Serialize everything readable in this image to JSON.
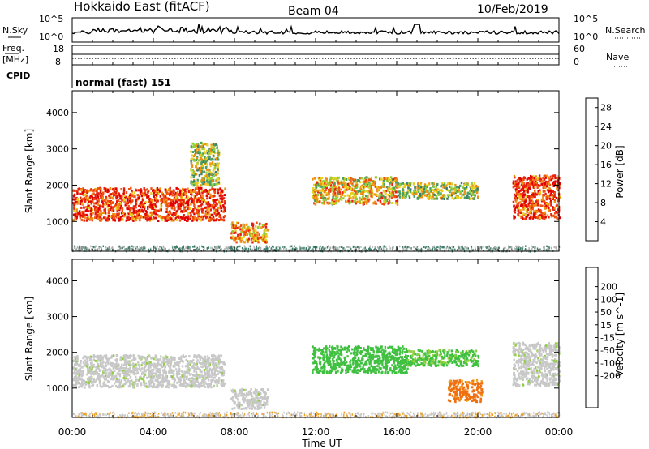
{
  "header": {
    "station": "Hokkaido East (fitACF)",
    "beam": "Beam 04",
    "date": "10/Feb/2019"
  },
  "panels": {
    "nsky": {
      "label": "N.Sky",
      "tick_top": "10^5",
      "tick_bottom": "10^0",
      "right_top": "10^5",
      "right_bottom": "10^0",
      "right_label": "N.Search"
    },
    "freq": {
      "label_line1": "Freq.",
      "label_line2": "[MHz]",
      "tick_top": "18",
      "tick_bottom": "8",
      "right_top": "60",
      "right_bottom": "0",
      "right_label": "Nave"
    },
    "cpid": {
      "label": "CPID",
      "text": "normal (fast) 151"
    }
  },
  "colors": {
    "power": [
      "#0000ff",
      "#1e4fa0",
      "#3a7d6a",
      "#4aa060",
      "#8fcf3e",
      "#e8d020",
      "#f09010",
      "#f05010",
      "#e82010",
      "#e00000"
    ],
    "velocity": [
      "#e00000",
      "#f03010",
      "#f07010",
      "#f0a020",
      "#f0d080",
      "#c8c8c8",
      "#90d040",
      "#40c040",
      "#3a7d6a",
      "#1e4fa0",
      "#0000ff"
    ],
    "ground": "#b0b0b0"
  },
  "chart_data": [
    {
      "type": "heatmap",
      "name": "power",
      "ylabel": "Slant Range [km]",
      "xlabel": "",
      "x_ticks": [
        "00:00",
        "04:00",
        "08:00",
        "12:00",
        "16:00",
        "20:00",
        "00:00"
      ],
      "y_ticks": [
        "1000",
        "2000",
        "3000",
        "4000"
      ],
      "y_tick_values": [
        1000,
        2000,
        3000,
        4000
      ],
      "ylim": [
        180,
        4600
      ],
      "xlim_hours": [
        0,
        24
      ],
      "colorbar_label": "Power [dB]",
      "colorbar_ticks": [
        "4",
        "8",
        "12",
        "16",
        "20",
        "24",
        "28"
      ],
      "colorbar_values": [
        4,
        8,
        12,
        16,
        20,
        24,
        28
      ],
      "colorbar_range": [
        0,
        30
      ],
      "regions": [
        {
          "t0": 0.0,
          "t1": 7.5,
          "r0": 1050,
          "r1": 1950,
          "level": 24
        },
        {
          "t0": 5.8,
          "t1": 7.2,
          "r0": 2000,
          "r1": 3200,
          "level": 14
        },
        {
          "t0": 7.8,
          "t1": 9.6,
          "r0": 450,
          "r1": 1000,
          "level": 20
        },
        {
          "t0": 11.8,
          "t1": 16.0,
          "r0": 1500,
          "r1": 2250,
          "level": 18
        },
        {
          "t0": 16.0,
          "t1": 20.0,
          "r0": 1650,
          "r1": 2100,
          "level": 14
        },
        {
          "t0": 21.7,
          "t1": 24.0,
          "r0": 1100,
          "r1": 2300,
          "level": 24
        }
      ]
    },
    {
      "type": "heatmap",
      "name": "velocity",
      "ylabel": "Slant Range [km]",
      "xlabel": "Time UT",
      "x_ticks": [
        "00:00",
        "04:00",
        "08:00",
        "12:00",
        "16:00",
        "20:00",
        "00:00"
      ],
      "y_ticks": [
        "1000",
        "2000",
        "3000",
        "4000"
      ],
      "y_tick_values": [
        1000,
        2000,
        3000,
        4000
      ],
      "ylim": [
        180,
        4600
      ],
      "xlim_hours": [
        0,
        24
      ],
      "colorbar_label": "Velocity [m s^-1]",
      "colorbar_ticks": [
        "200",
        "100",
        "50",
        "15",
        "-15",
        "-50",
        "-100",
        "-200"
      ],
      "regions": [
        {
          "t0": 0.0,
          "t1": 7.5,
          "r0": 1050,
          "r1": 1950,
          "vel": 0
        },
        {
          "t0": 7.8,
          "t1": 9.6,
          "r0": 450,
          "r1": 1000,
          "vel": 0
        },
        {
          "t0": 11.8,
          "t1": 16.5,
          "r0": 1450,
          "r1": 2200,
          "vel": 30
        },
        {
          "t0": 16.5,
          "t1": 20.0,
          "r0": 1650,
          "r1": 2100,
          "vel": 20
        },
        {
          "t0": 18.5,
          "t1": 20.2,
          "r0": 650,
          "r1": 1250,
          "vel": -60
        },
        {
          "t0": 21.7,
          "t1": 24.0,
          "r0": 1100,
          "r1": 2300,
          "vel": 0
        }
      ]
    }
  ]
}
